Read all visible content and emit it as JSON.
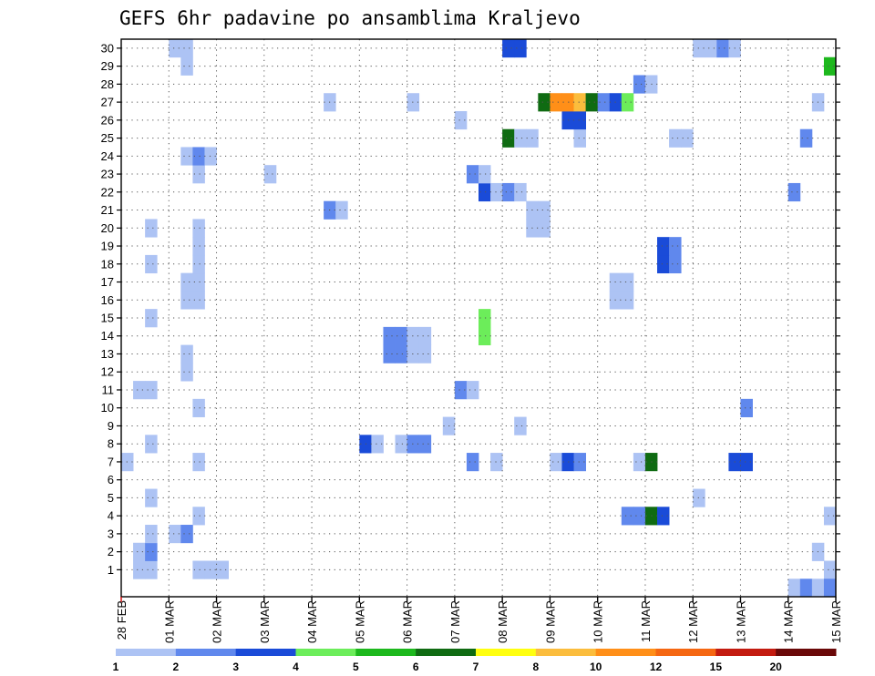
{
  "chart_data": {
    "type": "heatmap",
    "title": "GEFS 6hr padavine po ansamblima Kraljevo",
    "y_categories": [
      "1",
      "2",
      "3",
      "4",
      "5",
      "6",
      "7",
      "8",
      "9",
      "10",
      "11",
      "12",
      "13",
      "14",
      "15",
      "16",
      "17",
      "18",
      "19",
      "20",
      "21",
      "22",
      "23",
      "24",
      "25",
      "26",
      "27",
      "28",
      "29",
      "30"
    ],
    "x_tick_labels": [
      "28 FEB",
      "01 MAR",
      "02 MAR",
      "03 MAR",
      "04 MAR",
      "05 MAR",
      "06 MAR",
      "07 MAR",
      "08 MAR",
      "09 MAR",
      "10 MAR",
      "11 MAR",
      "12 MAR",
      "13 MAR",
      "14 MAR",
      "15 MAR"
    ],
    "x_step_hours": 6,
    "n_steps": 60,
    "colorbar": {
      "tick_labels": [
        "1",
        "2",
        "3",
        "4",
        "5",
        "6",
        "7",
        "8",
        "10",
        "12",
        "15",
        "20"
      ],
      "colors": [
        "#adc3f4",
        "#6088ed",
        "#1a4bd8",
        "#6ced5a",
        "#1db81d",
        "#0f6b12",
        "#ffff10",
        "#fbbd3d",
        "#ff8f18",
        "#f56712",
        "#c31b10",
        "#6a0808"
      ]
    },
    "grid": true,
    "cells": [
      {
        "m": 1,
        "t": 1,
        "c": 0
      },
      {
        "m": 1,
        "t": 2,
        "c": 0
      },
      {
        "m": 1,
        "t": 6,
        "c": 0
      },
      {
        "m": 1,
        "t": 7,
        "c": 0
      },
      {
        "m": 1,
        "t": 8,
        "c": 0
      },
      {
        "m": 1,
        "t": 59,
        "c": 0
      },
      {
        "m": 2,
        "t": 1,
        "c": 0
      },
      {
        "m": 2,
        "t": 2,
        "c": 1
      },
      {
        "m": 2,
        "t": 58,
        "c": 0
      },
      {
        "m": 3,
        "t": 2,
        "c": 0
      },
      {
        "m": 3,
        "t": 4,
        "c": 0
      },
      {
        "m": 3,
        "t": 5,
        "c": 1
      },
      {
        "m": 4,
        "t": 6,
        "c": 0
      },
      {
        "m": 4,
        "t": 42,
        "c": 1
      },
      {
        "m": 4,
        "t": 43,
        "c": 1
      },
      {
        "m": 4,
        "t": 44,
        "c": 5
      },
      {
        "m": 4,
        "t": 45,
        "c": 2
      },
      {
        "m": 4,
        "t": 59,
        "c": 0
      },
      {
        "m": 5,
        "t": 2,
        "c": 0
      },
      {
        "m": 5,
        "t": 48,
        "c": 0
      },
      {
        "m": 7,
        "t": 0,
        "c": 0
      },
      {
        "m": 7,
        "t": 6,
        "c": 0
      },
      {
        "m": 7,
        "t": 29,
        "c": 1
      },
      {
        "m": 7,
        "t": 31,
        "c": 0
      },
      {
        "m": 7,
        "t": 36,
        "c": 0
      },
      {
        "m": 7,
        "t": 37,
        "c": 2
      },
      {
        "m": 7,
        "t": 38,
        "c": 1
      },
      {
        "m": 7,
        "t": 43,
        "c": 0
      },
      {
        "m": 7,
        "t": 44,
        "c": 5
      },
      {
        "m": 7,
        "t": 51,
        "c": 2
      },
      {
        "m": 7,
        "t": 52,
        "c": 2
      },
      {
        "m": 8,
        "t": 2,
        "c": 0
      },
      {
        "m": 8,
        "t": 20,
        "c": 2
      },
      {
        "m": 8,
        "t": 21,
        "c": 0
      },
      {
        "m": 8,
        "t": 23,
        "c": 0
      },
      {
        "m": 8,
        "t": 24,
        "c": 1
      },
      {
        "m": 8,
        "t": 25,
        "c": 1
      },
      {
        "m": 9,
        "t": 27,
        "c": 0
      },
      {
        "m": 9,
        "t": 33,
        "c": 0
      },
      {
        "m": 10,
        "t": 6,
        "c": 0
      },
      {
        "m": 10,
        "t": 52,
        "c": 1
      },
      {
        "m": 11,
        "t": 1,
        "c": 0
      },
      {
        "m": 11,
        "t": 2,
        "c": 0
      },
      {
        "m": 11,
        "t": 28,
        "c": 1
      },
      {
        "m": 11,
        "t": 29,
        "c": 0
      },
      {
        "m": 12,
        "t": 5,
        "c": 0
      },
      {
        "m": 13,
        "t": 5,
        "c": 0
      },
      {
        "m": 13,
        "t": 22,
        "c": 1
      },
      {
        "m": 13,
        "t": 23,
        "c": 1
      },
      {
        "m": 13,
        "t": 24,
        "c": 0
      },
      {
        "m": 13,
        "t": 25,
        "c": 0
      },
      {
        "m": 14,
        "t": 22,
        "c": 1
      },
      {
        "m": 14,
        "t": 23,
        "c": 1
      },
      {
        "m": 14,
        "t": 24,
        "c": 0
      },
      {
        "m": 14,
        "t": 25,
        "c": 0
      },
      {
        "m": 14,
        "t": 30,
        "c": 3
      },
      {
        "m": 15,
        "t": 2,
        "c": 0
      },
      {
        "m": 15,
        "t": 30,
        "c": 3
      },
      {
        "m": 16,
        "t": 5,
        "c": 0
      },
      {
        "m": 16,
        "t": 6,
        "c": 0
      },
      {
        "m": 16,
        "t": 41,
        "c": 0
      },
      {
        "m": 16,
        "t": 42,
        "c": 0
      },
      {
        "m": 17,
        "t": 5,
        "c": 0
      },
      {
        "m": 17,
        "t": 6,
        "c": 0
      },
      {
        "m": 17,
        "t": 41,
        "c": 0
      },
      {
        "m": 17,
        "t": 42,
        "c": 0
      },
      {
        "m": 18,
        "t": 2,
        "c": 0
      },
      {
        "m": 18,
        "t": 6,
        "c": 0
      },
      {
        "m": 18,
        "t": 45,
        "c": 2
      },
      {
        "m": 18,
        "t": 46,
        "c": 1
      },
      {
        "m": 19,
        "t": 6,
        "c": 0
      },
      {
        "m": 19,
        "t": 45,
        "c": 2
      },
      {
        "m": 19,
        "t": 46,
        "c": 1
      },
      {
        "m": 20,
        "t": 2,
        "c": 0
      },
      {
        "m": 20,
        "t": 6,
        "c": 0
      },
      {
        "m": 20,
        "t": 34,
        "c": 0
      },
      {
        "m": 20,
        "t": 35,
        "c": 0
      },
      {
        "m": 21,
        "t": 17,
        "c": 1
      },
      {
        "m": 21,
        "t": 18,
        "c": 0
      },
      {
        "m": 21,
        "t": 34,
        "c": 0
      },
      {
        "m": 21,
        "t": 35,
        "c": 0
      },
      {
        "m": 22,
        "t": 30,
        "c": 2
      },
      {
        "m": 22,
        "t": 31,
        "c": 0
      },
      {
        "m": 22,
        "t": 32,
        "c": 1
      },
      {
        "m": 22,
        "t": 33,
        "c": 0
      },
      {
        "m": 22,
        "t": 56,
        "c": 1
      },
      {
        "m": 23,
        "t": 6,
        "c": 0
      },
      {
        "m": 23,
        "t": 12,
        "c": 0
      },
      {
        "m": 23,
        "t": 29,
        "c": 1
      },
      {
        "m": 23,
        "t": 30,
        "c": 0
      },
      {
        "m": 24,
        "t": 5,
        "c": 0
      },
      {
        "m": 24,
        "t": 6,
        "c": 1
      },
      {
        "m": 24,
        "t": 7,
        "c": 0
      },
      {
        "m": 25,
        "t": 32,
        "c": 5
      },
      {
        "m": 25,
        "t": 33,
        "c": 0
      },
      {
        "m": 25,
        "t": 34,
        "c": 0
      },
      {
        "m": 25,
        "t": 38,
        "c": 0
      },
      {
        "m": 25,
        "t": 46,
        "c": 0
      },
      {
        "m": 25,
        "t": 47,
        "c": 0
      },
      {
        "m": 25,
        "t": 57,
        "c": 1
      },
      {
        "m": 26,
        "t": 28,
        "c": 0
      },
      {
        "m": 26,
        "t": 37,
        "c": 2
      },
      {
        "m": 26,
        "t": 38,
        "c": 2
      },
      {
        "m": 27,
        "t": 17,
        "c": 0
      },
      {
        "m": 27,
        "t": 24,
        "c": 0
      },
      {
        "m": 27,
        "t": 35,
        "c": 5
      },
      {
        "m": 27,
        "t": 36,
        "c": 8
      },
      {
        "m": 27,
        "t": 37,
        "c": 8
      },
      {
        "m": 27,
        "t": 38,
        "c": 7
      },
      {
        "m": 27,
        "t": 39,
        "c": 5
      },
      {
        "m": 27,
        "t": 40,
        "c": 1
      },
      {
        "m": 27,
        "t": 41,
        "c": 2
      },
      {
        "m": 27,
        "t": 42,
        "c": 3
      },
      {
        "m": 27,
        "t": 58,
        "c": 0
      },
      {
        "m": 28,
        "t": 43,
        "c": 1
      },
      {
        "m": 28,
        "t": 44,
        "c": 0
      },
      {
        "m": 29,
        "t": 5,
        "c": 0
      },
      {
        "m": 29,
        "t": 59,
        "c": 4
      },
      {
        "m": 30,
        "t": 4,
        "c": 0
      },
      {
        "m": 30,
        "t": 5,
        "c": 0
      },
      {
        "m": 30,
        "t": 32,
        "c": 2
      },
      {
        "m": 30,
        "t": 33,
        "c": 2
      },
      {
        "m": 30,
        "t": 48,
        "c": 0
      },
      {
        "m": 30,
        "t": 49,
        "c": 0
      },
      {
        "m": 30,
        "t": 50,
        "c": 1
      },
      {
        "m": 30,
        "t": 51,
        "c": 0
      },
      {
        "m": 0,
        "t": 56,
        "c": 0
      },
      {
        "m": 0,
        "t": 57,
        "c": 1
      },
      {
        "m": 0,
        "t": 58,
        "c": 0
      },
      {
        "m": 0,
        "t": 59,
        "c": 1
      }
    ]
  }
}
